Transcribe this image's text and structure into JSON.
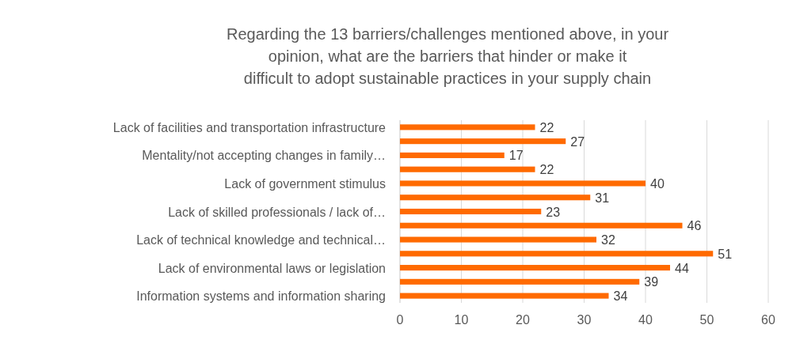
{
  "chart_data": {
    "type": "bar",
    "orientation": "horizontal",
    "title": "Regarding the 13 barriers/challenges mentioned above, in your opinion, what are the barriers that hinder or make it difficult to adopt sustainable practices in  your supply chain",
    "categories": [
      "Lack of facilities and transportation infrastructure",
      null,
      "Mentality/not accepting changes in family…",
      null,
      "Lack of government stimulus",
      null,
      "Lack of skilled professionals / lack of…",
      null,
      "Lack of technical knowledge and technical…",
      null,
      "Lack of environmental laws or legislation",
      null,
      "Information systems and information sharing"
    ],
    "values": [
      22,
      27,
      17,
      22,
      40,
      31,
      23,
      46,
      32,
      51,
      44,
      39,
      34
    ],
    "color": "#ff6a00",
    "xlim": [
      0,
      60
    ],
    "xticks": [
      0,
      10,
      20,
      30,
      40,
      50,
      60
    ],
    "grid": "x",
    "data_labels": true
  }
}
